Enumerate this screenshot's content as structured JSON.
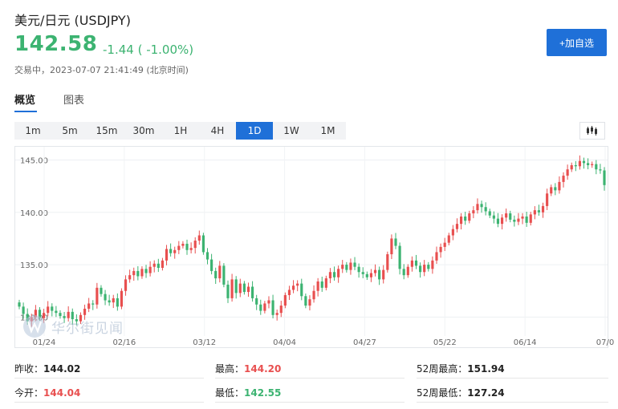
{
  "header": {
    "title": "美元/日元 (USDJPY)",
    "price": "142.58",
    "change": "-1.44 ( -1.00%)",
    "status": "交易中，2023-07-07 21:41:49 (北京时间)",
    "add_button": "+加自选"
  },
  "tabs": [
    {
      "label": "概览",
      "active": true
    },
    {
      "label": "图表",
      "active": false
    }
  ],
  "periods": [
    {
      "label": "1m",
      "active": false
    },
    {
      "label": "5m",
      "active": false
    },
    {
      "label": "15m",
      "active": false
    },
    {
      "label": "30m",
      "active": false
    },
    {
      "label": "1H",
      "active": false
    },
    {
      "label": "4H",
      "active": false
    },
    {
      "label": "1D",
      "active": true
    },
    {
      "label": "1W",
      "active": false
    },
    {
      "label": "1M",
      "active": false
    }
  ],
  "chart_type_icon": "candlestick-icon",
  "watermark": {
    "text": "华尔街见闻",
    "icon": "wallstreetcn-logo-icon"
  },
  "colors": {
    "up": "#e84f4f",
    "down": "#3cb371",
    "accent": "#1f70d8"
  },
  "chart_data": {
    "type": "candlestick",
    "y_ticks": [
      "145.00",
      "140.00",
      "135.00",
      "130.00"
    ],
    "ylim": [
      128.5,
      145.8
    ],
    "x_ticks": [
      "01/24",
      "02/16",
      "03/12",
      "04/04",
      "04/27",
      "05/22",
      "06/14",
      "07/0"
    ],
    "grid": true,
    "closes": [
      131.0,
      130.3,
      129.6,
      130.0,
      130.7,
      129.9,
      130.4,
      131.0,
      130.6,
      130.4,
      130.1,
      129.9,
      130.5,
      129.8,
      129.6,
      130.2,
      130.8,
      131.3,
      131.2,
      132.8,
      132.2,
      131.6,
      131.4,
      131.8,
      131.0,
      132.5,
      133.6,
      134.0,
      134.4,
      133.9,
      134.6,
      134.2,
      134.8,
      135.1,
      134.7,
      135.4,
      136.5,
      136.1,
      136.4,
      136.8,
      137.0,
      136.4,
      136.6,
      137.3,
      137.8,
      136.2,
      135.5,
      134.4,
      133.7,
      134.9,
      133.1,
      131.8,
      133.6,
      132.3,
      133.2,
      132.4,
      132.9,
      131.8,
      131.2,
      130.6,
      131.3,
      131.6,
      130.2,
      130.4,
      131.1,
      132.1,
      132.6,
      133.0,
      133.2,
      132.0,
      131.1,
      131.7,
      132.5,
      133.4,
      132.8,
      133.7,
      134.3,
      133.8,
      134.6,
      135.0,
      134.5,
      135.2,
      134.8,
      134.3,
      134.1,
      133.8,
      134.2,
      134.5,
      133.6,
      134.5,
      136.0,
      137.5,
      136.8,
      134.6,
      134.0,
      134.8,
      135.4,
      134.9,
      134.3,
      135.0,
      134.6,
      135.4,
      136.2,
      136.7,
      137.1,
      137.8,
      138.4,
      138.9,
      139.6,
      139.2,
      139.9,
      140.2,
      140.8,
      140.5,
      140.1,
      139.7,
      139.4,
      138.9,
      139.5,
      139.9,
      139.3,
      139.1,
      139.4,
      139.6,
      139.0,
      139.8,
      140.2,
      140.0,
      140.6,
      141.8,
      142.4,
      142.1,
      142.9,
      143.5,
      144.1,
      144.5,
      144.4,
      144.9,
      144.7,
      144.5,
      144.6,
      144.1,
      144.0,
      142.6
    ]
  },
  "stats": [
    {
      "label": "昨收：",
      "value": "144.02",
      "color": ""
    },
    {
      "label": "最高：",
      "value": "144.20",
      "color": "up"
    },
    {
      "label": "52周最高：",
      "value": "151.94",
      "color": ""
    },
    {
      "label": "今开：",
      "value": "144.04",
      "color": "up"
    },
    {
      "label": "最低：",
      "value": "142.55",
      "color": "down"
    },
    {
      "label": "52周最低：",
      "value": "127.24",
      "color": ""
    }
  ]
}
